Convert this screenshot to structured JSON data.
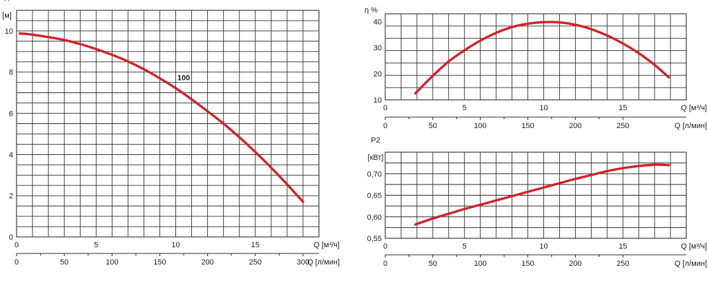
{
  "colors": {
    "curve": "#d42027",
    "grid": "#2b2b2b",
    "background": "#ffffff"
  },
  "chart_data": [
    {
      "id": "head",
      "type": "line",
      "ylabel": "H",
      "yunit": "[м]",
      "xlabel": "Q [м³/ч]",
      "x2label": "Q [л/мин]",
      "xlim": [
        0,
        19
      ],
      "ylim": [
        0,
        11
      ],
      "xticks": [
        0,
        5,
        10,
        15
      ],
      "yticks": [
        0,
        2,
        4,
        6,
        8,
        10
      ],
      "x2ticks": [
        0,
        50,
        100,
        150,
        200,
        250,
        300
      ],
      "x2factor": 16.6667,
      "annotation": {
        "text": "100",
        "x": 10.5,
        "y": 7.6
      },
      "series": [
        {
          "x": [
            0.2,
            1,
            2,
            3,
            4,
            5,
            6,
            7,
            8,
            9,
            10,
            11,
            12,
            13,
            14,
            15,
            16,
            17,
            18
          ],
          "y": [
            9.88,
            9.82,
            9.7,
            9.56,
            9.36,
            9.12,
            8.84,
            8.52,
            8.14,
            7.7,
            7.22,
            6.68,
            6.1,
            5.5,
            4.84,
            4.12,
            3.36,
            2.55,
            1.7
          ]
        }
      ]
    },
    {
      "id": "efficiency",
      "type": "line",
      "ylabel": "η %",
      "xlabel": "Q [м³/ч]",
      "x2label": "Q [л/мин]",
      "xlim": [
        0,
        19
      ],
      "ylim": [
        10,
        43
      ],
      "xticks": [
        0,
        5,
        10,
        15
      ],
      "yticks": [
        10,
        20,
        30,
        40
      ],
      "x2ticks": [
        0,
        50,
        100,
        150,
        200,
        250
      ],
      "x2factor": 16.6667,
      "series": [
        {
          "x": [
            1.9,
            3,
            4,
            5,
            6,
            7,
            8,
            9,
            10,
            11,
            12,
            13,
            14,
            15,
            16,
            17,
            17.9
          ],
          "y": [
            12.5,
            19.2,
            24.7,
            29.0,
            32.7,
            35.7,
            37.9,
            39.2,
            39.8,
            39.7,
            38.8,
            37.1,
            34.7,
            31.6,
            27.9,
            23.4,
            18.6
          ]
        }
      ]
    },
    {
      "id": "power",
      "type": "line",
      "ylabel": "P2",
      "yunit": "[кВт]",
      "xlabel": "Q [м³/ч]",
      "x2label": "Q [л/мин]",
      "xlim": [
        0,
        19
      ],
      "ylim": [
        0.55,
        0.75
      ],
      "xticks": [
        0,
        5,
        10,
        15
      ],
      "yticks": [
        0.55,
        0.6,
        0.65,
        0.7
      ],
      "ytickLabels": [
        "0,55",
        "0,60",
        "0,65",
        "0,70"
      ],
      "x2ticks": [
        0,
        50,
        100,
        150,
        200,
        250
      ],
      "x2factor": 16.6667,
      "series": [
        {
          "x": [
            1.9,
            3,
            4,
            5,
            6,
            7,
            8,
            9,
            10,
            11,
            12,
            13,
            14,
            15,
            16,
            17,
            17.9
          ],
          "y": [
            0.582,
            0.596,
            0.607,
            0.618,
            0.628,
            0.638,
            0.648,
            0.658,
            0.668,
            0.678,
            0.688,
            0.697,
            0.706,
            0.713,
            0.718,
            0.721,
            0.72
          ]
        }
      ]
    }
  ]
}
